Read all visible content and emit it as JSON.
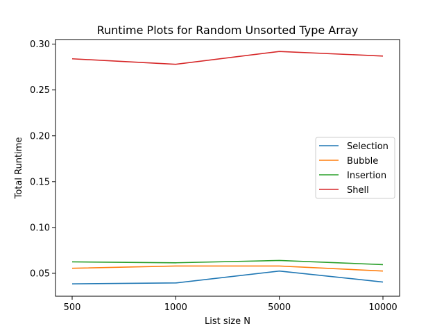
{
  "chart_data": {
    "type": "line",
    "title": "Runtime Plots for Random Unsorted Type Array",
    "xlabel": "List size N",
    "ylabel": "Total Runtime",
    "categories": [
      "500",
      "1000",
      "5000",
      "10000"
    ],
    "ylim": [
      0.025,
      0.305
    ],
    "yticks": [
      0.05,
      0.1,
      0.15,
      0.2,
      0.25,
      0.3
    ],
    "ytick_labels": [
      "0.05",
      "0.10",
      "0.15",
      "0.20",
      "0.25",
      "0.30"
    ],
    "grid": false,
    "legend_position": "center-right",
    "series": [
      {
        "name": "Selection",
        "color": "#1f77b4",
        "values": [
          0.0385,
          0.0395,
          0.0525,
          0.0405
        ]
      },
      {
        "name": "Bubble",
        "color": "#ff7f0e",
        "values": [
          0.0555,
          0.058,
          0.058,
          0.0525
        ]
      },
      {
        "name": "Insertion",
        "color": "#2ca02c",
        "values": [
          0.0625,
          0.0615,
          0.064,
          0.0595
        ]
      },
      {
        "name": "Shell",
        "color": "#d62728",
        "values": [
          0.284,
          0.278,
          0.292,
          0.287
        ]
      }
    ]
  }
}
